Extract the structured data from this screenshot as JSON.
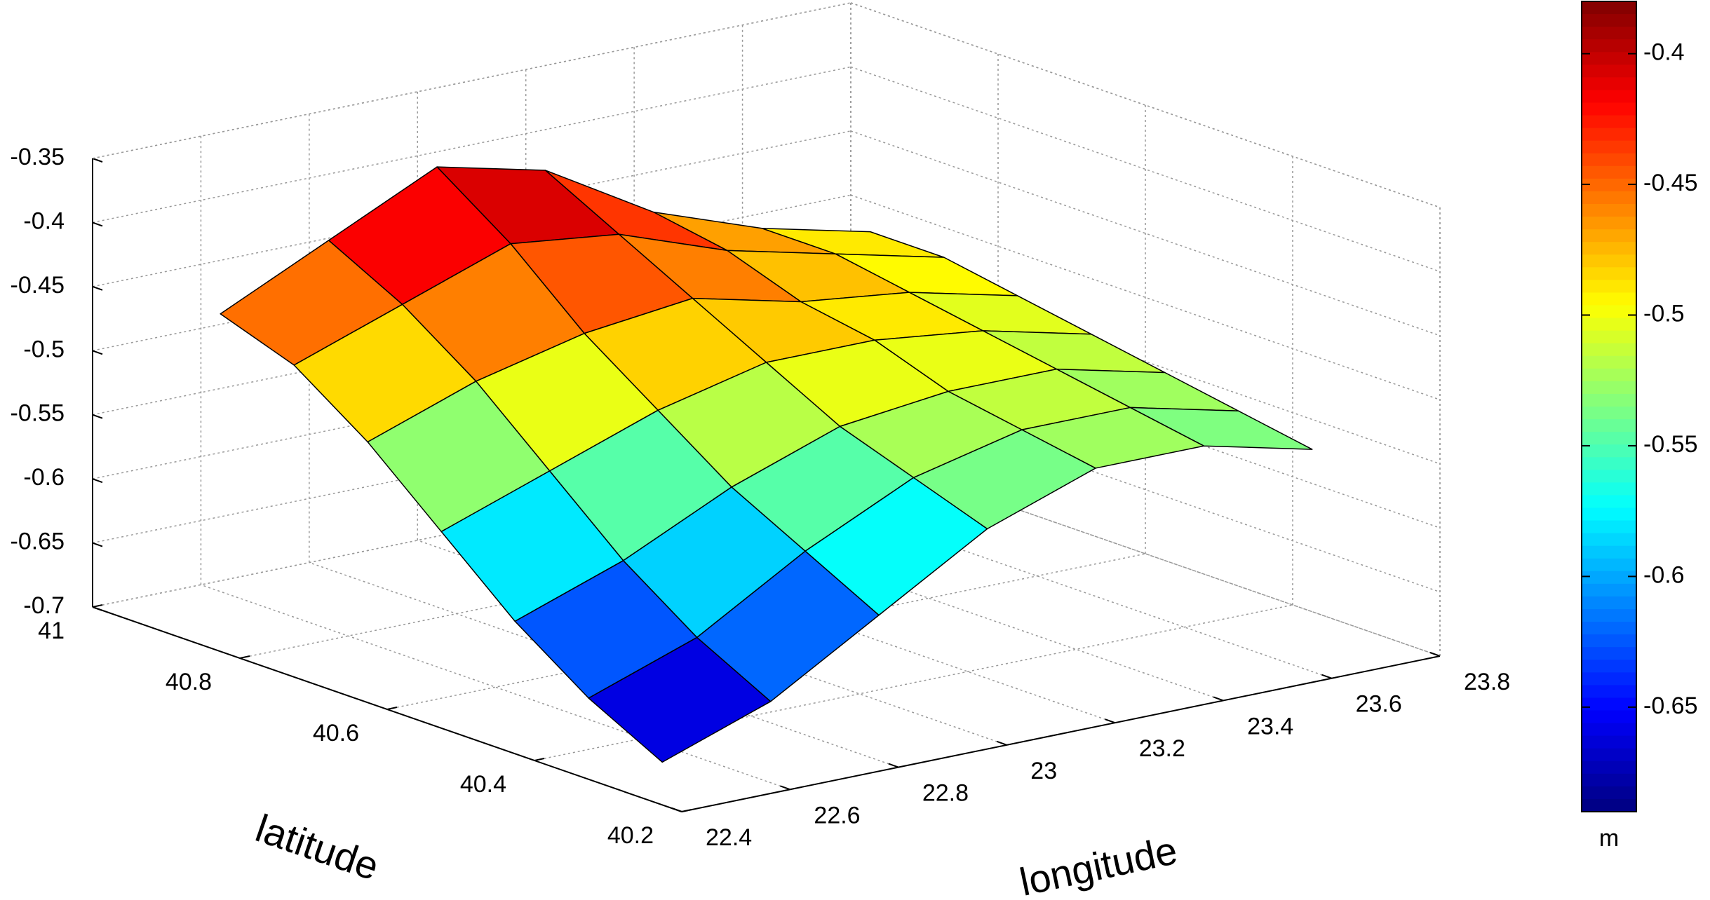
{
  "chart_data": {
    "type": "surface",
    "xlabel": "longitude",
    "ylabel": "latitude",
    "x": [
      22.5,
      22.7,
      22.9,
      23.1,
      23.3,
      23.5,
      23.7
    ],
    "y": [
      40.3,
      40.4,
      40.5,
      40.6,
      40.7,
      40.8,
      40.9
    ],
    "z": [
      [
        -0.69,
        -0.66,
        -0.61,
        -0.56,
        -0.53,
        -0.53,
        -0.55
      ],
      [
        -0.66,
        -0.63,
        -0.58,
        -0.54,
        -0.52,
        -0.52,
        -0.54
      ],
      [
        -0.62,
        -0.59,
        -0.55,
        -0.52,
        -0.51,
        -0.51,
        -0.53
      ],
      [
        -0.57,
        -0.54,
        -0.51,
        -0.49,
        -0.49,
        -0.5,
        -0.52
      ],
      [
        -0.52,
        -0.49,
        -0.47,
        -0.46,
        -0.48,
        -0.49,
        -0.51
      ],
      [
        -0.48,
        -0.45,
        -0.42,
        -0.43,
        -0.46,
        -0.48,
        -0.5
      ],
      [
        -0.46,
        -0.42,
        -0.38,
        -0.4,
        -0.45,
        -0.48,
        -0.5
      ]
    ],
    "xlim": [
      22.4,
      23.8
    ],
    "ylim": [
      40.2,
      41
    ],
    "zlim": [
      -0.7,
      -0.35
    ],
    "xticks": [
      22.4,
      22.6,
      22.8,
      23,
      23.2,
      23.4,
      23.6,
      23.8
    ],
    "yticks": [
      40.2,
      40.4,
      40.6,
      40.8,
      41
    ],
    "zticks": [
      -0.7,
      -0.65,
      -0.6,
      -0.55,
      -0.5,
      -0.45,
      -0.4,
      -0.35
    ],
    "colormap": "jet",
    "clim": [
      -0.69,
      -0.38
    ],
    "colorbar_ticks": [
      -0.65,
      -0.6,
      -0.55,
      -0.5,
      -0.45,
      -0.4
    ],
    "colorbar_label": "m",
    "grid": true
  }
}
